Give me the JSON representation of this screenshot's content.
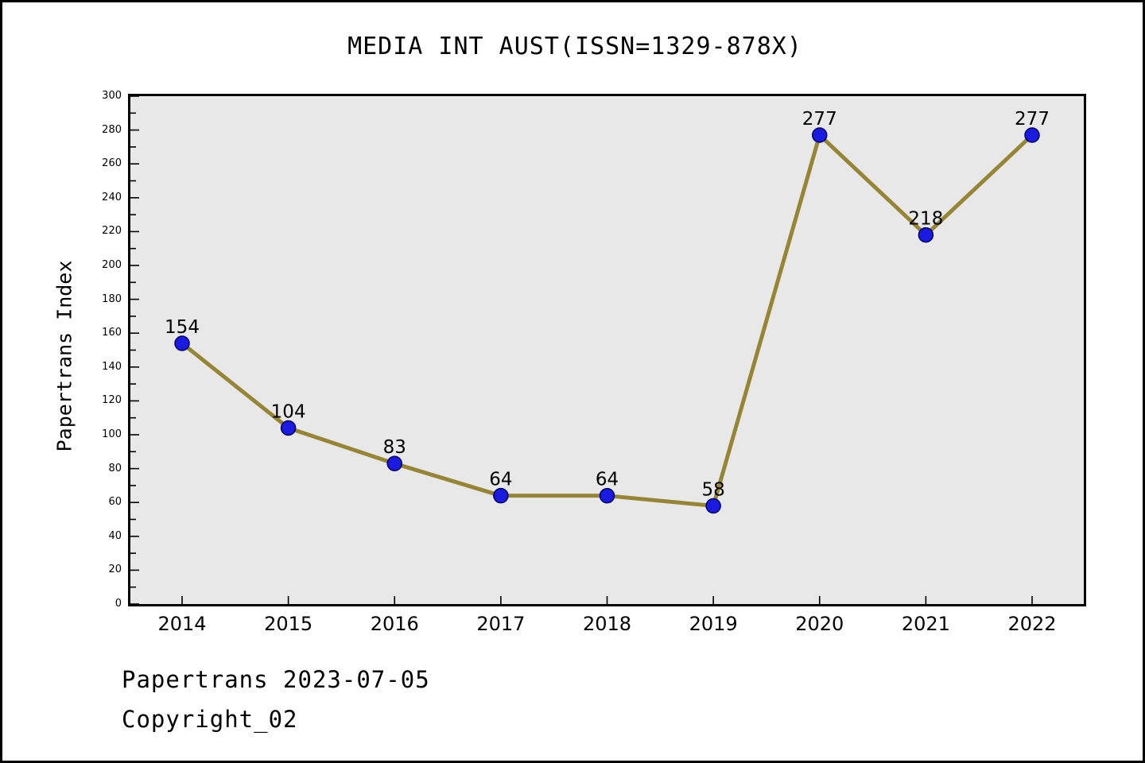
{
  "title": "MEDIA INT AUST(ISSN=1329-878X)",
  "footer": {
    "line1": "Papertrans 2023-07-05",
    "line2": "Copyright_02"
  },
  "chart_data": {
    "type": "line",
    "title": "MEDIA INT AUST(ISSN=1329-878X)",
    "categories": [
      "2014",
      "2015",
      "2016",
      "2017",
      "2018",
      "2019",
      "2020",
      "2021",
      "2022"
    ],
    "values": [
      154,
      104,
      83,
      64,
      64,
      58,
      277,
      218,
      277
    ],
    "xlabel": "",
    "ylabel": "Papertrans Index",
    "ylim": [
      0,
      300
    ],
    "ytick_step": 20,
    "ytick_minor_step": 10,
    "grid": false,
    "legend": "none",
    "line_color": "#978536",
    "line_width": 5,
    "marker_color": "#1a1ae0",
    "marker_edge_color": "#000060",
    "marker_radius": 9,
    "plot_bg": "#e8e8e8",
    "axis_color": "#000000",
    "label_color": "#000000"
  }
}
